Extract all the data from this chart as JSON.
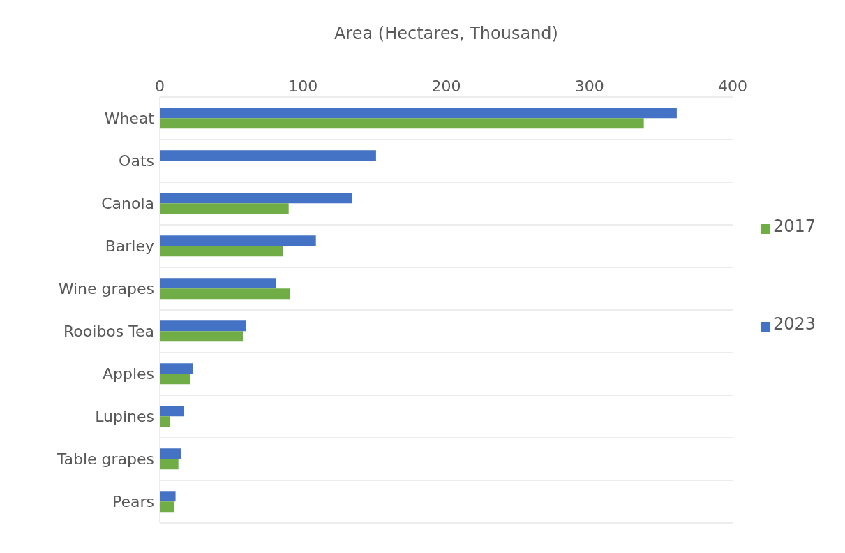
{
  "chart_data": {
    "type": "bar",
    "orientation": "horizontal",
    "xlabel": "Area (Hectares, Thousand)",
    "categories": [
      "Wheat",
      "Oats",
      "Canola",
      "Barley",
      "Wine grapes",
      "Rooibos Tea",
      "Apples",
      "Lupines",
      "Table grapes",
      "Pears"
    ],
    "series": [
      {
        "name": "2023",
        "color": "#4472c4",
        "values": [
          361,
          151,
          134,
          109,
          81,
          60,
          23,
          17,
          15,
          11
        ]
      },
      {
        "name": "2017",
        "color": "#70ad47",
        "values": [
          338,
          null,
          90,
          86,
          91,
          58,
          21,
          7,
          13,
          10
        ]
      }
    ],
    "xlim": [
      0,
      400
    ],
    "xticks": [
      0,
      100,
      200,
      300,
      400
    ],
    "grid": "y",
    "legend": "right"
  }
}
